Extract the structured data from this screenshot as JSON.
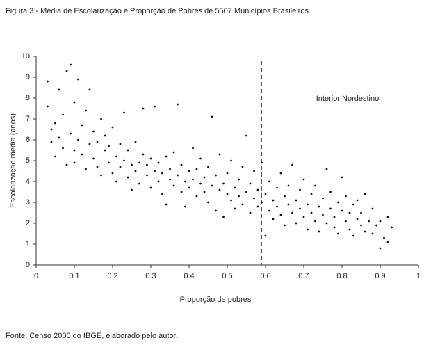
{
  "chart_data": {
    "type": "scatter",
    "title": "Figura 3 - Média de Escolarização e Proporção de Pobres de 5507 Municípios Brasileiros.",
    "x_label": "Proporção de pobres",
    "y_label": "Escolarização média (anos)",
    "annotation": "Interior Nordestino",
    "source": "Fonte: Censo 2000 do IBGE, elaborado pelo autor.",
    "reference_x": 0.59,
    "color": "#111111",
    "xlim": [
      0,
      1
    ],
    "xticks": [
      0,
      0.1,
      0.2,
      0.3,
      0.4,
      0.5,
      0.6,
      0.7,
      0.8,
      0.9,
      1
    ],
    "ylim": [
      0,
      10
    ],
    "yticks": [
      0,
      1,
      2,
      3,
      4,
      5,
      6,
      7,
      8,
      9,
      10
    ],
    "grid": false,
    "x": [
      0.03,
      0.03,
      0.04,
      0.04,
      0.05,
      0.05,
      0.06,
      0.06,
      0.07,
      0.07,
      0.08,
      0.08,
      0.09,
      0.09,
      0.1,
      0.1,
      0.1,
      0.11,
      0.11,
      0.12,
      0.12,
      0.13,
      0.13,
      0.14,
      0.14,
      0.15,
      0.15,
      0.16,
      0.16,
      0.17,
      0.17,
      0.18,
      0.18,
      0.19,
      0.19,
      0.2,
      0.2,
      0.21,
      0.21,
      0.22,
      0.22,
      0.23,
      0.23,
      0.24,
      0.24,
      0.25,
      0.25,
      0.26,
      0.26,
      0.27,
      0.27,
      0.28,
      0.28,
      0.29,
      0.29,
      0.3,
      0.3,
      0.31,
      0.31,
      0.32,
      0.32,
      0.33,
      0.33,
      0.34,
      0.34,
      0.35,
      0.35,
      0.36,
      0.36,
      0.37,
      0.37,
      0.38,
      0.38,
      0.39,
      0.39,
      0.4,
      0.4,
      0.41,
      0.41,
      0.42,
      0.42,
      0.43,
      0.43,
      0.44,
      0.44,
      0.45,
      0.45,
      0.46,
      0.46,
      0.47,
      0.47,
      0.48,
      0.48,
      0.49,
      0.49,
      0.5,
      0.5,
      0.51,
      0.51,
      0.52,
      0.52,
      0.53,
      0.53,
      0.54,
      0.54,
      0.55,
      0.55,
      0.56,
      0.56,
      0.57,
      0.57,
      0.58,
      0.58,
      0.59,
      0.59,
      0.6,
      0.6,
      0.61,
      0.61,
      0.62,
      0.62,
      0.63,
      0.63,
      0.64,
      0.64,
      0.65,
      0.65,
      0.66,
      0.66,
      0.67,
      0.67,
      0.68,
      0.68,
      0.69,
      0.69,
      0.7,
      0.7,
      0.71,
      0.71,
      0.72,
      0.72,
      0.73,
      0.73,
      0.74,
      0.74,
      0.75,
      0.75,
      0.76,
      0.76,
      0.77,
      0.77,
      0.78,
      0.78,
      0.79,
      0.79,
      0.8,
      0.8,
      0.81,
      0.81,
      0.82,
      0.82,
      0.83,
      0.83,
      0.84,
      0.84,
      0.85,
      0.85,
      0.86,
      0.86,
      0.87,
      0.88,
      0.88,
      0.89,
      0.9,
      0.9,
      0.91,
      0.92,
      0.92,
      0.93
    ],
    "values": [
      8.8,
      7.6,
      5.9,
      6.5,
      5.2,
      6.8,
      8.4,
      6.1,
      5.6,
      7.2,
      9.3,
      4.8,
      9.6,
      6.3,
      5.5,
      7.8,
      4.9,
      6.0,
      8.9,
      5.3,
      6.7,
      4.6,
      7.4,
      5.8,
      8.4,
      5.1,
      6.4,
      4.7,
      5.9,
      7.0,
      4.3,
      5.5,
      6.2,
      4.9,
      5.7,
      4.4,
      6.6,
      5.2,
      4.0,
      5.8,
      4.7,
      7.3,
      5.0,
      4.2,
      5.5,
      4.8,
      3.6,
      5.9,
      4.5,
      4.9,
      3.9,
      5.3,
      7.5,
      4.3,
      4.8,
      3.7,
      5.1,
      4.5,
      7.6,
      4.0,
      4.9,
      3.4,
      4.4,
      5.2,
      2.9,
      4.1,
      4.6,
      3.8,
      5.4,
      4.3,
      7.7,
      3.5,
      4.8,
      4.0,
      2.8,
      4.5,
      3.7,
      5.6,
      4.1,
      3.3,
      4.6,
      3.9,
      5.1,
      3.5,
      4.2,
      3.0,
      4.7,
      7.1,
      3.8,
      4.3,
      2.6,
      3.6,
      5.3,
      3.9,
      2.3,
      3.4,
      4.4,
      3.1,
      5.0,
      3.7,
      2.7,
      4.1,
      3.3,
      2.9,
      4.7,
      3.5,
      6.2,
      2.5,
      3.9,
      3.2,
      4.5,
      2.8,
      3.6,
      4.9,
      3.0,
      3.4,
      1.4,
      2.6,
      4.0,
      3.1,
      2.2,
      3.7,
      2.8,
      4.4,
      2.4,
      3.3,
      1.9,
      2.9,
      3.8,
      2.5,
      4.8,
      3.1,
      2.0,
      2.7,
      3.6,
      2.3,
      4.1,
      2.9,
      1.7,
      3.4,
      2.5,
      2.1,
      3.8,
      2.8,
      1.6,
      3.2,
      2.4,
      4.6,
      2.0,
      2.7,
      3.5,
      1.8,
      2.3,
      3.0,
      1.5,
      2.6,
      4.2,
      2.1,
      3.3,
      1.7,
      2.5,
      2.9,
      1.4,
      2.2,
      3.1,
      1.9,
      2.5,
      1.6,
      3.4,
      2.1,
      1.5,
      2.7,
      1.9,
      0.8,
      2.1,
      1.3,
      1.1,
      2.3,
      1.8
    ]
  }
}
